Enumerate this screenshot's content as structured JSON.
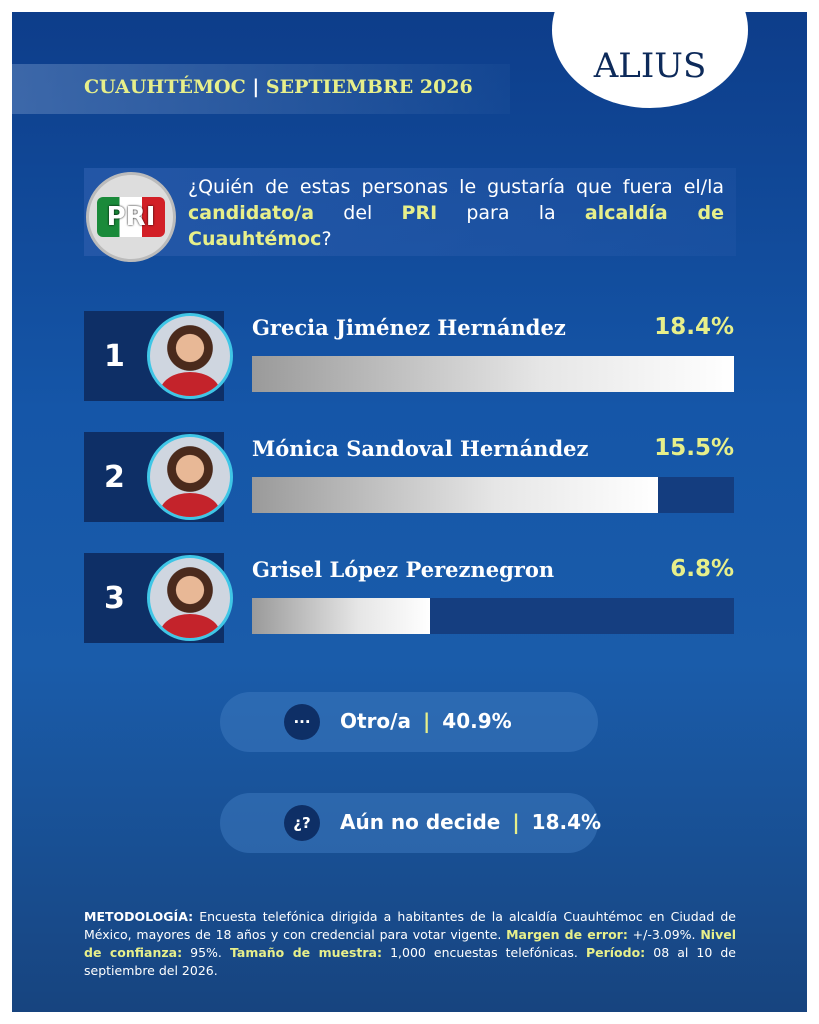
{
  "logo": "ALIUS",
  "header": {
    "place": "CUAUHTÉMOC",
    "date": "SEPTIEMBRE 2026"
  },
  "party_logo": "PRI",
  "question": [
    {
      "text": "¿Quién de estas personas le gustaría que fuera el/la ",
      "em": false
    },
    {
      "text": "candidato/a",
      "em": true
    },
    {
      "text": " del ",
      "em": false
    },
    {
      "text": "PRI",
      "em": true
    },
    {
      "text": " para la ",
      "em": false
    },
    {
      "text": "alcaldía de Cuauhtémoc",
      "em": true
    },
    {
      "text": "?",
      "em": false
    }
  ],
  "chart_data": {
    "type": "bar",
    "orientation": "horizontal",
    "ranks": [
      1,
      2,
      3
    ],
    "categories": [
      "Grecia Jiménez Hernández",
      "Mónica Sandoval Hernández",
      "Grisel López Pereznegron"
    ],
    "values": [
      18.4,
      15.5,
      6.8
    ],
    "value_labels": [
      "18.4%",
      "15.5%",
      "6.8%"
    ],
    "xlim": [
      0,
      18.4
    ],
    "color": "#e6e6e6"
  },
  "other_answers": [
    {
      "icon": "···",
      "label": "Otro/a",
      "value": 40.9,
      "value_label": "40.9%"
    },
    {
      "icon": "¿?",
      "label": "Aún no decide",
      "value": 18.4,
      "value_label": "18.4%"
    }
  ],
  "methodology": [
    {
      "label": "METODOLOGÍA:",
      "text": " Encuesta telefónica dirigida a habitantes de la alcaldía Cuauhtémoc en Ciudad de México, mayores de 18 años y con credencial para votar vigente. ",
      "highlight": false
    },
    {
      "label": "Margen de error:",
      "text": " +/-3.09%. ",
      "highlight": true
    },
    {
      "label": "Nivel de confianza:",
      "text": " 95%. ",
      "highlight": true
    },
    {
      "label": "Tamaño de muestra:",
      "text": " 1,000 encuestas telefónicas. ",
      "highlight": true
    },
    {
      "label": "Período:",
      "text": " 08 al 10 de septiembre del 2026.",
      "highlight": true
    }
  ]
}
